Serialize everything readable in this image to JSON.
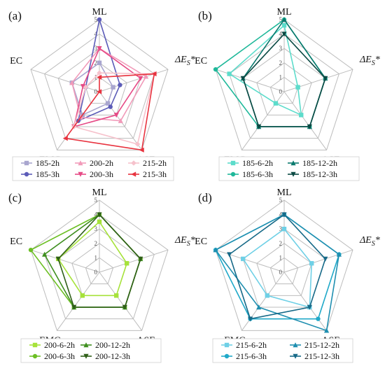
{
  "chart_data": [
    {
      "type": "radar",
      "panel": "(a)",
      "axes": [
        "ML",
        "ΔEs*",
        "ASE",
        "EMC",
        "EC"
      ],
      "rlim": [
        0,
        5
      ],
      "ticks": [
        "0",
        "1",
        "2",
        "3",
        "4",
        "5"
      ],
      "legend_position": "bottom",
      "series": [
        {
          "name": "185-2h",
          "color": "#a9a6cf",
          "marker": "square",
          "values": [
            2,
            1,
            1,
            2,
            2
          ]
        },
        {
          "name": "185-3h",
          "color": "#5c5cb8",
          "marker": "circle",
          "values": [
            5,
            1.5,
            1.3,
            2.5,
            1
          ]
        },
        {
          "name": "200-2h",
          "color": "#f19ab9",
          "marker": "triangle",
          "values": [
            3,
            3.4,
            2.5,
            2.2,
            2
          ]
        },
        {
          "name": "200-3h",
          "color": "#e64a86",
          "marker": "triangle-down",
          "values": [
            3,
            3,
            2,
            3,
            1.2
          ]
        },
        {
          "name": "215-2h",
          "color": "#f6c2cc",
          "marker": "diamond",
          "values": [
            1.3,
            4,
            4.5,
            3,
            1
          ]
        },
        {
          "name": "215-3h",
          "color": "#e8333f",
          "marker": "triangle-left",
          "values": [
            1,
            4,
            5,
            4,
            0
          ]
        }
      ]
    },
    {
      "type": "radar",
      "panel": "(b)",
      "axes": [
        "ML",
        "ΔEs*",
        "ASE",
        "EMC",
        "EC"
      ],
      "rlim": [
        0,
        5
      ],
      "ticks": [
        "0",
        "1",
        "2",
        "3",
        "4",
        "5"
      ],
      "legend_position": "bottom",
      "series": [
        {
          "name": "185-6-2h",
          "color": "#5cdccb",
          "marker": "square",
          "values": [
            4.6,
            1,
            2,
            1,
            4
          ]
        },
        {
          "name": "185-6-3h",
          "color": "#1fb89a",
          "marker": "circle",
          "values": [
            5,
            3,
            3,
            3,
            5
          ]
        },
        {
          "name": "185-12-2h",
          "color": "#0b7a6e",
          "marker": "triangle",
          "values": [
            5,
            3,
            3,
            3,
            3
          ]
        },
        {
          "name": "185-12-3h",
          "color": "#0b4a44",
          "marker": "triangle-down",
          "values": [
            4,
            3,
            3,
            3,
            3
          ]
        }
      ]
    },
    {
      "type": "radar",
      "panel": "(c)",
      "axes": [
        "ML",
        "ΔEs*",
        "ASE",
        "EMC",
        "EC"
      ],
      "rlim": [
        0,
        5
      ],
      "ticks": [
        "0",
        "1",
        "2",
        "3",
        "4",
        "5"
      ],
      "legend_position": "bottom",
      "series": [
        {
          "name": "200-6-2h",
          "color": "#a6e23a",
          "marker": "square",
          "values": [
            3.5,
            2,
            2,
            2,
            3
          ]
        },
        {
          "name": "200-6-3h",
          "color": "#6cbf24",
          "marker": "circle",
          "values": [
            4,
            3,
            3,
            3,
            5
          ]
        },
        {
          "name": "200-12-2h",
          "color": "#3f8f1f",
          "marker": "triangle",
          "values": [
            4,
            3,
            3,
            3,
            4
          ]
        },
        {
          "name": "200-12-3h",
          "color": "#2f5f18",
          "marker": "triangle-down",
          "values": [
            4,
            3,
            3,
            3,
            3
          ]
        }
      ]
    },
    {
      "type": "radar",
      "panel": "(d)",
      "axes": [
        "ML",
        "ΔEs*",
        "ASE",
        "EMC",
        "EC"
      ],
      "rlim": [
        0,
        5
      ],
      "ticks": [
        "0",
        "1",
        "2",
        "3",
        "4",
        "5"
      ],
      "legend_position": "bottom",
      "series": [
        {
          "name": "215-6-2h",
          "color": "#6fd0e6",
          "marker": "square",
          "values": [
            3,
            2,
            3,
            2,
            3
          ]
        },
        {
          "name": "215-6-3h",
          "color": "#20a9c9",
          "marker": "circle",
          "values": [
            4,
            4,
            4,
            4,
            5
          ]
        },
        {
          "name": "215-12-2h",
          "color": "#1f8fb0",
          "marker": "triangle",
          "values": [
            4,
            4,
            5,
            3,
            5
          ]
        },
        {
          "name": "215-12-3h",
          "color": "#176a88",
          "marker": "triangle-down",
          "values": [
            4,
            3,
            3,
            4,
            4
          ]
        }
      ]
    }
  ]
}
